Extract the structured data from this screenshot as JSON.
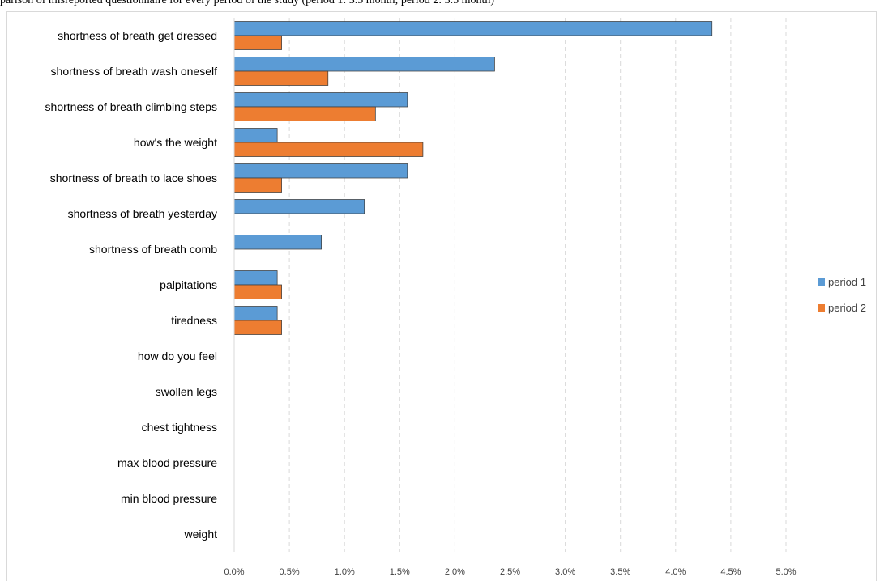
{
  "caption": "parison of misreported questionnaire for every period of the study (period 1: 3.5 month; period 2: 3.5 month)",
  "chart_data": {
    "type": "bar",
    "orientation": "horizontal",
    "title": "",
    "xlabel": "",
    "ylabel": "",
    "categories": [
      "shortness of breath get dressed",
      "shortness of breath wash oneself",
      "shortness of breath climbing steps",
      "how's the weight",
      "shortness of breath to lace shoes",
      "shortness of breath yesterday",
      "shortness of breath comb",
      "palpitations",
      "tiredness",
      "how do you feel",
      "swollen legs",
      "chest tightness",
      "max blood pressure",
      "min blood pressure",
      "weight"
    ],
    "series": [
      {
        "name": "period 1",
        "color": "#5b9bd5",
        "values": [
          4.33,
          2.36,
          1.57,
          0.39,
          1.57,
          1.18,
          0.79,
          0.39,
          0.39,
          0,
          0,
          0,
          0,
          0,
          0
        ]
      },
      {
        "name": "period 2",
        "color": "#ed7d31",
        "values": [
          0.43,
          0.85,
          1.28,
          1.71,
          0.43,
          0,
          0,
          0.43,
          0.43,
          0,
          0,
          0,
          0,
          0,
          0
        ]
      }
    ],
    "xlim": [
      0,
      5.0
    ],
    "xticks": [
      "0.0%",
      "0.5%",
      "1.0%",
      "1.5%",
      "2.0%",
      "2.5%",
      "3.0%",
      "3.5%",
      "4.0%",
      "4.5%",
      "5.0%"
    ],
    "grid": "vertical-dashed",
    "legend_position": "right"
  }
}
